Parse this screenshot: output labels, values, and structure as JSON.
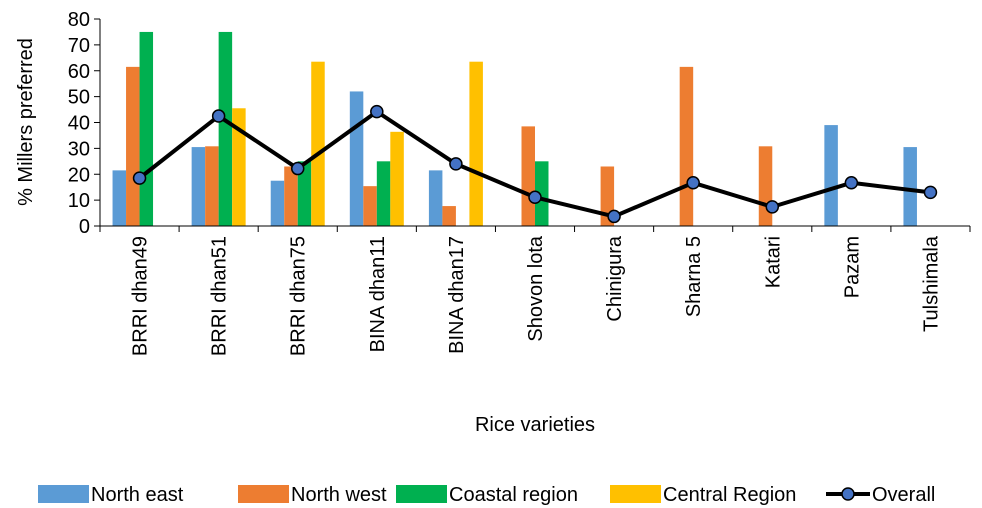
{
  "chart_data": {
    "type": "bar",
    "xlabel": "Rice varieties",
    "ylabel": "% Millers preferred",
    "ylim": [
      0,
      80
    ],
    "yticks": [
      0,
      10,
      20,
      30,
      40,
      50,
      60,
      70,
      80
    ],
    "categories": [
      "BRRI dhan49",
      "BRRI dhan51",
      "BRRI dhan75",
      "BINA dhan11",
      "BINA dhan17",
      "Shovon lota",
      "Chinigura",
      "Sharna 5",
      "Katari",
      "Pazam",
      "Tulshimala"
    ],
    "series": [
      {
        "name": "North east",
        "color": "#5b9bd5",
        "kind": "bar",
        "values": [
          21.5,
          30.5,
          17.5,
          52,
          21.5,
          0,
          0,
          0,
          0,
          39,
          30.5
        ]
      },
      {
        "name": "North west",
        "color": "#ed7d31",
        "kind": "bar",
        "values": [
          61.5,
          30.8,
          23,
          15.4,
          7.7,
          38.5,
          23,
          61.5,
          30.8,
          0,
          0
        ]
      },
      {
        "name": "Coastal region",
        "color": "#00b050",
        "kind": "bar",
        "values": [
          75,
          75,
          25,
          25,
          0,
          25,
          0,
          0,
          0,
          0,
          0
        ]
      },
      {
        "name": "Central Region",
        "color": "#ffc000",
        "kind": "bar",
        "values": [
          0,
          45.5,
          63.5,
          36.4,
          63.5,
          0,
          0,
          0,
          0,
          0,
          0
        ]
      },
      {
        "name": "Overall",
        "color": "#000000",
        "marker_color": "#4472c4",
        "kind": "line",
        "values": [
          18.5,
          42.5,
          22.2,
          44.2,
          24,
          11.1,
          3.7,
          16.7,
          7.4,
          16.7,
          13
        ]
      }
    ],
    "legend_position": "bottom",
    "grid": false
  }
}
